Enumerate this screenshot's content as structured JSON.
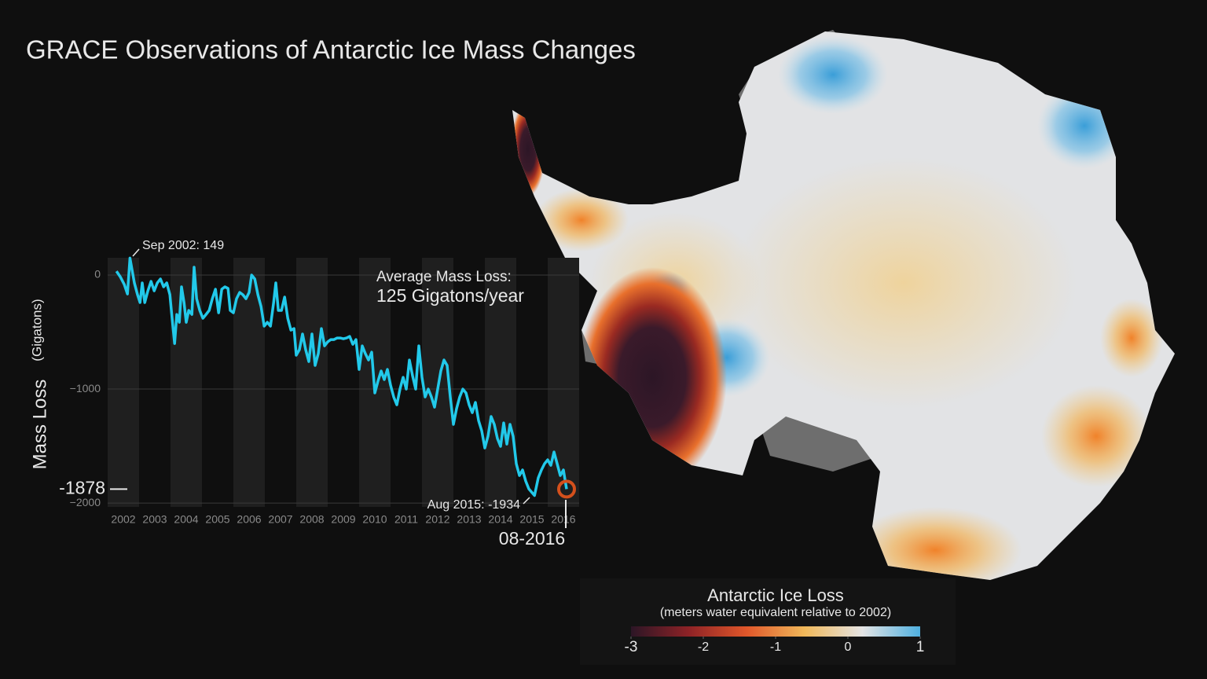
{
  "chart_data": [
    {
      "type": "line",
      "title": "GRACE Observations of Antarctic Ice Mass Changes",
      "y_label": "Mass Loss",
      "y_label_unit": "(Gigatons)",
      "color": "#22c9ea",
      "xlim": [
        2001.5,
        2016.5
      ],
      "xticks": [
        2002,
        2003,
        2004,
        2005,
        2006,
        2007,
        2008,
        2009,
        2010,
        2011,
        2012,
        2013,
        2014,
        2015,
        2016
      ],
      "ylim": [
        -2034,
        152
      ],
      "yticks": [
        0,
        {
          "value": -1000,
          "label": "−1000"
        },
        {
          "value": -2000,
          "label": "−2000"
        }
      ],
      "grid": true,
      "x": [
        2001.78,
        2001.9,
        2002.03,
        2002.13,
        2002.21,
        2002.35,
        2002.45,
        2002.53,
        2002.6,
        2002.68,
        2002.78,
        2002.88,
        2002.98,
        2003.08,
        2003.18,
        2003.28,
        2003.38,
        2003.48,
        2003.55,
        2003.63,
        2003.7,
        2003.78,
        2003.85,
        2003.93,
        2004.0,
        2004.08,
        2004.18,
        2004.25,
        2004.33,
        2004.43,
        2004.53,
        2004.63,
        2004.73,
        2004.83,
        2004.93,
        2005.03,
        2005.13,
        2005.23,
        2005.33,
        2005.4,
        2005.5,
        2005.6,
        2005.7,
        2005.8,
        2005.9,
        2006.0,
        2006.08,
        2006.18,
        2006.28,
        2006.38,
        2006.48,
        2006.58,
        2006.68,
        2006.78,
        2006.85,
        2006.93,
        2007.03,
        2007.13,
        2007.23,
        2007.33,
        2007.43,
        2007.5,
        2007.6,
        2007.7,
        2007.8,
        2007.9,
        2008.0,
        2008.1,
        2008.2,
        2008.3,
        2008.4,
        2008.5,
        2008.6,
        2008.7,
        2008.8,
        2008.9,
        2009.0,
        2009.1,
        2009.2,
        2009.3,
        2009.4,
        2009.5,
        2009.6,
        2009.7,
        2009.8,
        2009.9,
        2010.0,
        2010.1,
        2010.2,
        2010.3,
        2010.4,
        2010.5,
        2010.6,
        2010.7,
        2010.8,
        2010.9,
        2011.0,
        2011.1,
        2011.2,
        2011.3,
        2011.4,
        2011.5,
        2011.6,
        2011.7,
        2011.8,
        2011.9,
        2012.0,
        2012.1,
        2012.2,
        2012.3,
        2012.4,
        2012.5,
        2012.6,
        2012.7,
        2012.8,
        2012.9,
        2013.0,
        2013.1,
        2013.2,
        2013.3,
        2013.4,
        2013.5,
        2013.6,
        2013.7,
        2013.8,
        2013.9,
        2014.0,
        2014.1,
        2014.2,
        2014.3,
        2014.4,
        2014.5,
        2014.6,
        2014.7,
        2014.8,
        2014.9,
        2015.08,
        2015.2,
        2015.3,
        2015.4,
        2015.5,
        2015.6,
        2015.7,
        2015.8,
        2015.9,
        2016.0,
        2016.1
      ],
      "values": [
        34,
        -14,
        -83,
        -166,
        149,
        -69,
        -172,
        -241,
        -69,
        -241,
        -138,
        -55,
        -138,
        -69,
        -34,
        -103,
        -69,
        -172,
        -379,
        -600,
        -345,
        -414,
        -103,
        -241,
        -414,
        -310,
        -345,
        69,
        -207,
        -310,
        -379,
        -345,
        -310,
        -207,
        -124,
        -331,
        -124,
        -103,
        -117,
        -310,
        -331,
        -207,
        -152,
        -172,
        -207,
        -152,
        0,
        -34,
        -172,
        -276,
        -448,
        -414,
        -448,
        -241,
        -69,
        -310,
        -310,
        -193,
        -379,
        -483,
        -469,
        -703,
        -655,
        -517,
        -655,
        -759,
        -517,
        -793,
        -690,
        -469,
        -621,
        -586,
        -566,
        -566,
        -552,
        -552,
        -559,
        -552,
        -538,
        -607,
        -566,
        -828,
        -621,
        -690,
        -745,
        -676,
        -1034,
        -931,
        -841,
        -917,
        -828,
        -966,
        -1069,
        -1138,
        -1000,
        -897,
        -1000,
        -745,
        -883,
        -1000,
        -621,
        -897,
        -1069,
        -1000,
        -1069,
        -1159,
        -1000,
        -841,
        -745,
        -793,
        -1069,
        -1310,
        -1172,
        -1069,
        -1000,
        -1034,
        -1138,
        -1207,
        -1117,
        -1276,
        -1366,
        -1517,
        -1414,
        -1241,
        -1310,
        -1434,
        -1503,
        -1297,
        -1483,
        -1310,
        -1414,
        -1655,
        -1759,
        -1710,
        -1807,
        -1876,
        -1934,
        -1779,
        -1710,
        -1655,
        -1621,
        -1669,
        -1552,
        -1655,
        -1759,
        -1710,
        -1878
      ],
      "annotations": [
        "Sep 2002: 149",
        "Aug 2015: -1934",
        "08-2016"
      ],
      "average_label": "Average Mass Loss:",
      "average_value": "125 Gigatons/year",
      "marker_color": "#d4501c"
    },
    {
      "type": "colorbar",
      "title": "Antarctic Ice Loss",
      "subtitle": "(meters water equivalent relative to 2002)",
      "xlim": [
        -3,
        1
      ],
      "xticks": [
        -3,
        -2,
        -1,
        0,
        1
      ],
      "colors": [
        "#2c1626",
        "#8e2226",
        "#e0572a",
        "#f0b85a",
        "#e4e4e4",
        "#4fb0e0"
      ]
    }
  ]
}
